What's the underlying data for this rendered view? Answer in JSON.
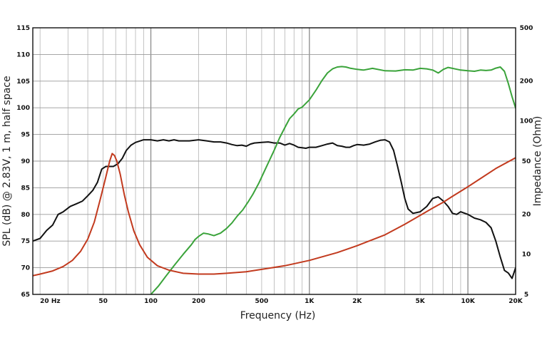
{
  "chart_data": {
    "type": "line",
    "xlabel": "Frequency (Hz)",
    "ylabel": "SPL (dB) @ 2.83V, 1 m, half space",
    "y2label": "Impedance (Ohm)",
    "x_scale": "log",
    "y2_scale": "log",
    "xlim": [
      18,
      20000
    ],
    "ylim": [
      65,
      115
    ],
    "y2lim": [
      5,
      500
    ],
    "grid": true,
    "x_ticks": [
      {
        "value": 20,
        "label": "20 Hz"
      },
      {
        "value": 50,
        "label": "50"
      },
      {
        "value": 100,
        "label": "100"
      },
      {
        "value": 200,
        "label": "200"
      },
      {
        "value": 500,
        "label": "500"
      },
      {
        "value": 1000,
        "label": "1K"
      },
      {
        "value": 2000,
        "label": "2K"
      },
      {
        "value": 5000,
        "label": "5K"
      },
      {
        "value": 10000,
        "label": "10K"
      },
      {
        "value": 20000,
        "label": "20K"
      }
    ],
    "y_ticks": [
      {
        "value": 65,
        "label": "65"
      },
      {
        "value": 70,
        "label": "70"
      },
      {
        "value": 75,
        "label": "75"
      },
      {
        "value": 80,
        "label": "80"
      },
      {
        "value": 85,
        "label": "85"
      },
      {
        "value": 90,
        "label": "90"
      },
      {
        "value": 95,
        "label": "95"
      },
      {
        "value": 100,
        "label": "100"
      },
      {
        "value": 105,
        "label": "105"
      },
      {
        "value": 110,
        "label": "110"
      },
      {
        "value": 115,
        "label": "115"
      }
    ],
    "y2_ticks": [
      {
        "value": 5,
        "label": "5"
      },
      {
        "value": 10,
        "label": "10"
      },
      {
        "value": 20,
        "label": "20"
      },
      {
        "value": 50,
        "label": "50"
      },
      {
        "value": 100,
        "label": "100"
      },
      {
        "value": 200,
        "label": "200"
      },
      {
        "value": 500,
        "label": "500"
      }
    ],
    "series": [
      {
        "axis": "left",
        "color": "#111111",
        "points": [
          [
            18,
            75
          ],
          [
            20,
            75.5
          ],
          [
            22,
            77
          ],
          [
            24,
            78
          ],
          [
            26,
            80
          ],
          [
            28,
            80.5
          ],
          [
            31,
            81.5
          ],
          [
            34,
            82
          ],
          [
            37,
            82.5
          ],
          [
            40,
            83.5
          ],
          [
            43,
            84.5
          ],
          [
            46,
            86
          ],
          [
            49,
            88.5
          ],
          [
            52,
            89
          ],
          [
            55,
            89
          ],
          [
            58,
            89
          ],
          [
            62,
            89.5
          ],
          [
            66,
            90.5
          ],
          [
            70,
            92
          ],
          [
            75,
            93
          ],
          [
            80,
            93.5
          ],
          [
            90,
            94
          ],
          [
            100,
            94
          ],
          [
            110,
            93.8
          ],
          [
            120,
            94
          ],
          [
            130,
            93.8
          ],
          [
            140,
            94
          ],
          [
            150,
            93.8
          ],
          [
            175,
            93.8
          ],
          [
            200,
            94
          ],
          [
            225,
            93.8
          ],
          [
            250,
            93.6
          ],
          [
            275,
            93.6
          ],
          [
            300,
            93.4
          ],
          [
            325,
            93.1
          ],
          [
            350,
            92.9
          ],
          [
            375,
            93
          ],
          [
            400,
            92.8
          ],
          [
            425,
            93.2
          ],
          [
            450,
            93.4
          ],
          [
            500,
            93.5
          ],
          [
            550,
            93.6
          ],
          [
            600,
            93.4
          ],
          [
            650,
            93.4
          ],
          [
            700,
            93
          ],
          [
            750,
            93.3
          ],
          [
            800,
            93
          ],
          [
            850,
            92.6
          ],
          [
            900,
            92.5
          ],
          [
            950,
            92.4
          ],
          [
            1000,
            92.6
          ],
          [
            1100,
            92.6
          ],
          [
            1200,
            92.9
          ],
          [
            1300,
            93.2
          ],
          [
            1400,
            93.4
          ],
          [
            1500,
            92.9
          ],
          [
            1600,
            92.8
          ],
          [
            1700,
            92.6
          ],
          [
            1800,
            92.6
          ],
          [
            1900,
            92.9
          ],
          [
            2000,
            93.1
          ],
          [
            2200,
            93
          ],
          [
            2400,
            93.2
          ],
          [
            2600,
            93.6
          ],
          [
            2800,
            93.9
          ],
          [
            3000,
            94
          ],
          [
            3200,
            93.6
          ],
          [
            3400,
            92
          ],
          [
            3600,
            89
          ],
          [
            3800,
            86
          ],
          [
            4000,
            83
          ],
          [
            4200,
            81
          ],
          [
            4500,
            80.2
          ],
          [
            5000,
            80.5
          ],
          [
            5500,
            81.5
          ],
          [
            6000,
            83
          ],
          [
            6500,
            83.3
          ],
          [
            7000,
            82.5
          ],
          [
            7500,
            81.5
          ],
          [
            8000,
            80.2
          ],
          [
            8500,
            80
          ],
          [
            9000,
            80.5
          ],
          [
            10000,
            80
          ],
          [
            11000,
            79.3
          ],
          [
            12000,
            79
          ],
          [
            13000,
            78.5
          ],
          [
            14000,
            77.5
          ],
          [
            15000,
            75
          ],
          [
            16000,
            72
          ],
          [
            17000,
            69.5
          ],
          [
            18000,
            69
          ],
          [
            19000,
            68
          ],
          [
            20000,
            70
          ]
        ]
      },
      {
        "axis": "right",
        "color": "#3aa33a",
        "points": [
          [
            100,
            5
          ],
          [
            112,
            5.8
          ],
          [
            125,
            6.9
          ],
          [
            140,
            8.2
          ],
          [
            160,
            10
          ],
          [
            180,
            11.8
          ],
          [
            190,
            12.9
          ],
          [
            200,
            13.6
          ],
          [
            215,
            14.4
          ],
          [
            230,
            14.2
          ],
          [
            250,
            13.8
          ],
          [
            275,
            14.4
          ],
          [
            300,
            15.6
          ],
          [
            325,
            17.2
          ],
          [
            350,
            19.3
          ],
          [
            380,
            21.5
          ],
          [
            410,
            24.6
          ],
          [
            440,
            28.2
          ],
          [
            480,
            34.2
          ],
          [
            520,
            42
          ],
          [
            560,
            50.6
          ],
          [
            600,
            60.4
          ],
          [
            650,
            75.1
          ],
          [
            700,
            89.2
          ],
          [
            750,
            104
          ],
          [
            800,
            113
          ],
          [
            850,
            123
          ],
          [
            900,
            127
          ],
          [
            1000,
            144
          ],
          [
            1100,
            170
          ],
          [
            1200,
            201
          ],
          [
            1300,
            229
          ],
          [
            1400,
            246
          ],
          [
            1500,
            254
          ],
          [
            1600,
            256
          ],
          [
            1700,
            254
          ],
          [
            1800,
            249
          ],
          [
            2000,
            244
          ],
          [
            2200,
            241
          ],
          [
            2500,
            248
          ],
          [
            3000,
            238
          ],
          [
            3500,
            237
          ],
          [
            4000,
            242
          ],
          [
            4500,
            241
          ],
          [
            5000,
            248
          ],
          [
            5500,
            246
          ],
          [
            6000,
            241
          ],
          [
            6500,
            229
          ],
          [
            7000,
            244
          ],
          [
            7500,
            252
          ],
          [
            8000,
            248
          ],
          [
            9000,
            241
          ],
          [
            10000,
            238
          ],
          [
            11000,
            236
          ],
          [
            12000,
            241
          ],
          [
            13000,
            239
          ],
          [
            14000,
            241
          ],
          [
            15000,
            249
          ],
          [
            16000,
            254
          ],
          [
            17000,
            236
          ],
          [
            18000,
            191
          ],
          [
            19000,
            152
          ],
          [
            20000,
            125
          ]
        ]
      },
      {
        "axis": "right",
        "color": "#c23a1e",
        "points": [
          [
            18,
            6.9
          ],
          [
            20,
            7.1
          ],
          [
            24,
            7.5
          ],
          [
            28,
            8.1
          ],
          [
            32,
            9
          ],
          [
            36,
            10.5
          ],
          [
            40,
            13
          ],
          [
            44,
            17.5
          ],
          [
            48,
            26
          ],
          [
            52,
            38
          ],
          [
            55,
            50
          ],
          [
            57,
            57
          ],
          [
            59,
            55
          ],
          [
            61,
            50
          ],
          [
            64,
            40
          ],
          [
            68,
            28
          ],
          [
            72,
            21
          ],
          [
            78,
            15
          ],
          [
            85,
            11.8
          ],
          [
            95,
            9.5
          ],
          [
            110,
            8.2
          ],
          [
            130,
            7.6
          ],
          [
            160,
            7.2
          ],
          [
            200,
            7.1
          ],
          [
            250,
            7.1
          ],
          [
            300,
            7.2
          ],
          [
            400,
            7.4
          ],
          [
            500,
            7.7
          ],
          [
            700,
            8.2
          ],
          [
            1000,
            9
          ],
          [
            1500,
            10.3
          ],
          [
            2000,
            11.6
          ],
          [
            3000,
            14
          ],
          [
            4000,
            16.8
          ],
          [
            5000,
            19.6
          ],
          [
            6000,
            22.2
          ],
          [
            7000,
            24.6
          ],
          [
            8000,
            27.2
          ],
          [
            10000,
            32.1
          ],
          [
            12000,
            37
          ],
          [
            15000,
            44
          ],
          [
            20000,
            53
          ]
        ]
      }
    ]
  }
}
